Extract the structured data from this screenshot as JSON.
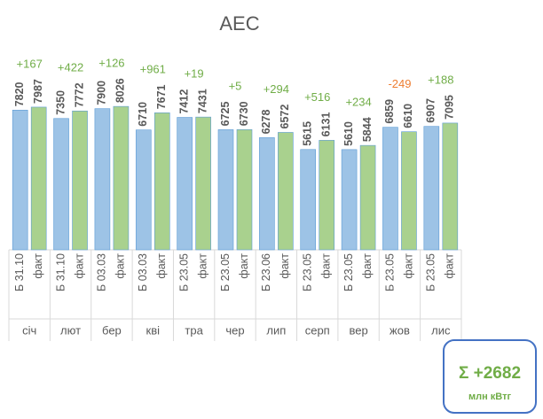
{
  "chart_data": {
    "type": "bar",
    "title": "АЕС",
    "categories": [
      "січ",
      "лют",
      "бер",
      "кві",
      "тра",
      "чер",
      "лип",
      "серп",
      "вер",
      "жов",
      "лис"
    ],
    "series": [
      {
        "color": "#9dc3e6",
        "labels": [
          "Б 31.10",
          "Б 31.10",
          "Б 03.03",
          "Б 03.03",
          "Б 23.05",
          "Б 23.05",
          "Б 23.06",
          "Б 23.05",
          "Б 23.05",
          "Б 23.05",
          "Б 23.05"
        ],
        "values": [
          7820,
          7350,
          7900,
          6710,
          7412,
          6725,
          6278,
          5615,
          5610,
          6859,
          6907
        ]
      },
      {
        "color": "#a9d18e",
        "labels": [
          "факт",
          "факт",
          "факт",
          "факт",
          "факт",
          "факт",
          "факт",
          "факт",
          "факт",
          "факт",
          "факт"
        ],
        "values": [
          7987,
          7772,
          8026,
          7671,
          7431,
          6730,
          6572,
          6131,
          5844,
          6610,
          7095
        ]
      }
    ],
    "differences": {
      "values": [
        167,
        422,
        126,
        961,
        19,
        5,
        294,
        516,
        234,
        -249,
        188
      ],
      "value_labels": [
        "+167",
        "+422",
        "+126",
        "+961",
        "+19",
        "+5",
        "+294",
        "+516",
        "+234",
        "-249",
        "+188"
      ],
      "positive_color": "#70ad47",
      "negative_color": "#ed7d31"
    },
    "ylim": [
      0,
      12000
    ],
    "total": {
      "value": 2682,
      "label": "Σ +2682",
      "unit": "млн кВтг",
      "color": "#70ad47",
      "border_color": "#4472c4"
    }
  }
}
